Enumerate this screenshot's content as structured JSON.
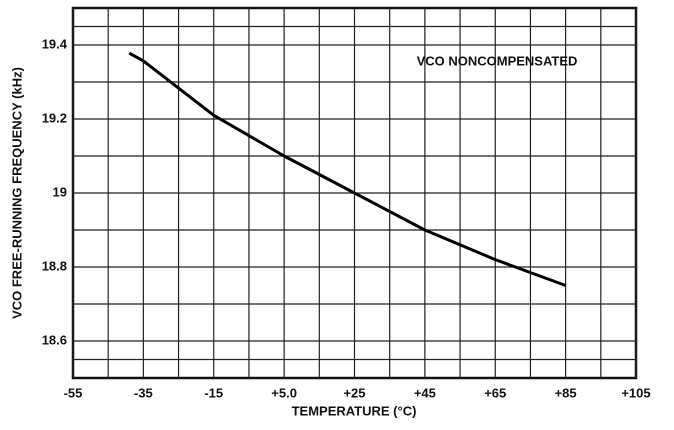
{
  "chart_data": {
    "type": "line",
    "annotation": "VCO NONCOMPENSATED",
    "x_label": "TEMPERATURE (°C)",
    "y_label": "VCO FREE-RUNNING FREQUENCY (kHz)",
    "series": [
      {
        "name": "VCO NONCOMPENSATED",
        "color": "#000000",
        "x": [
          -39,
          -35,
          -15,
          5,
          25,
          45,
          65,
          85
        ],
        "values": [
          19.378,
          19.357,
          19.21,
          19.1,
          19.0,
          18.9,
          18.82,
          18.75
        ]
      }
    ],
    "xlim": [
      -55,
      105
    ],
    "xticks": [
      -55,
      -35,
      -15,
      {
        "value": 5,
        "label": "+5.0"
      },
      {
        "value": 25,
        "label": "+25"
      },
      {
        "value": 45,
        "label": "+45"
      },
      {
        "value": 65,
        "label": "+65"
      },
      {
        "value": 85,
        "label": "+85"
      },
      {
        "value": 105,
        "label": "+105"
      }
    ],
    "ylim": [
      18.5,
      19.5
    ],
    "yticks": [
      18.6,
      18.8,
      19,
      19.2,
      19.4
    ],
    "grid": true,
    "minor_grid": true
  }
}
